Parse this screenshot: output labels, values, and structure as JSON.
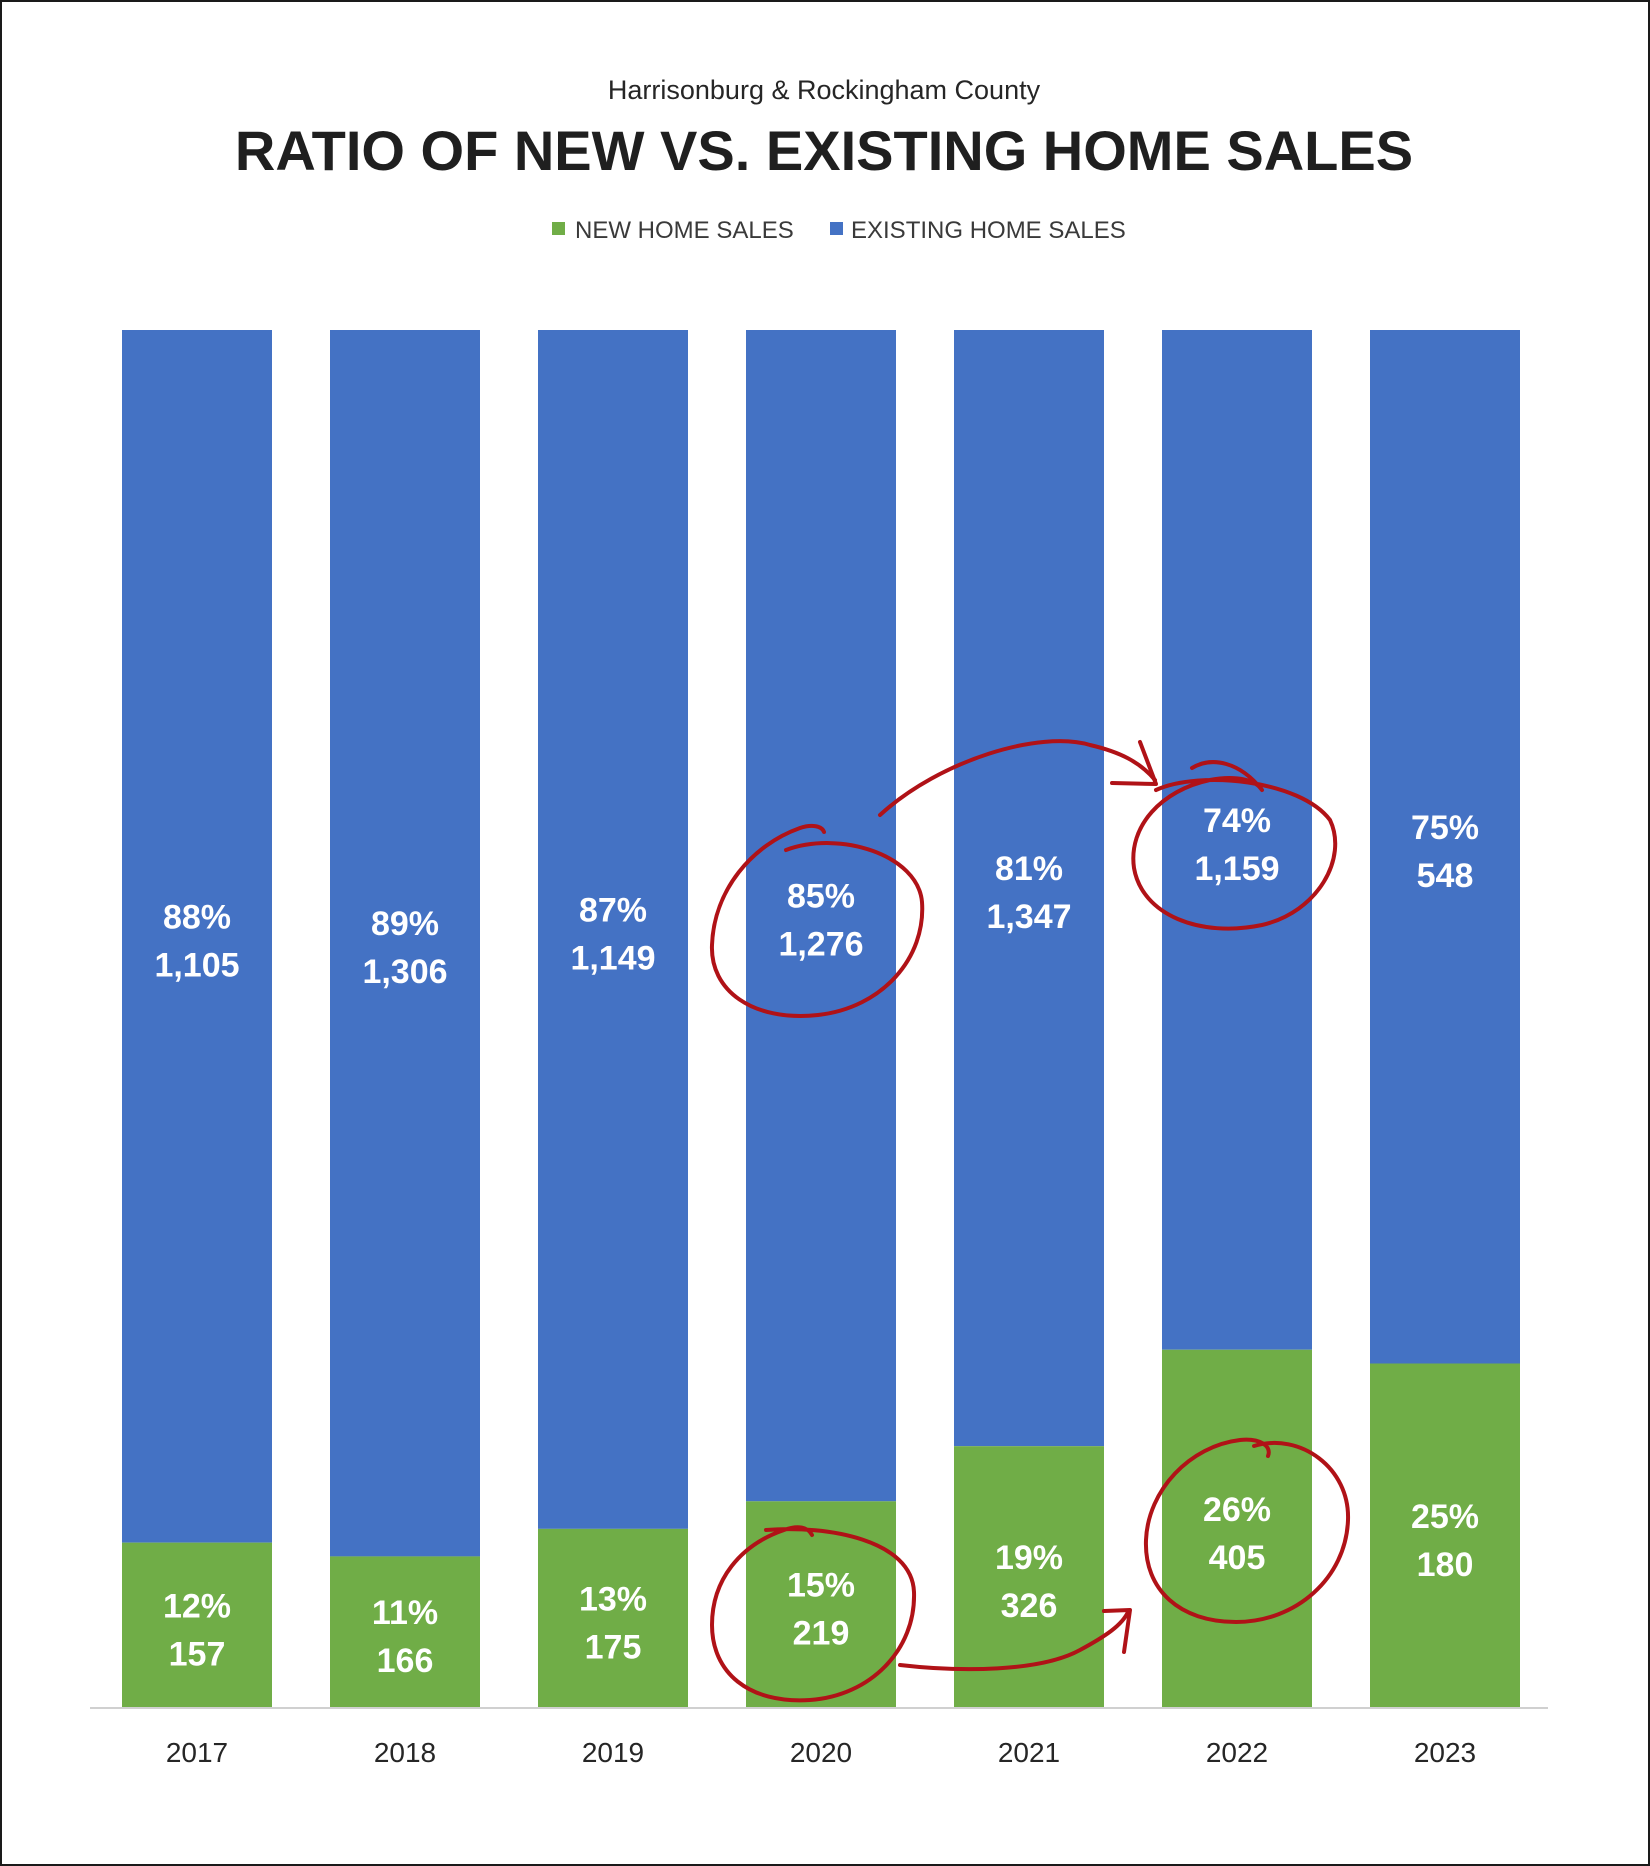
{
  "chart_data": {
    "type": "bar",
    "stacked": true,
    "normalized": true,
    "subtitle": "Harrisonburg & Rockingham County",
    "title": "RATIO OF NEW VS. EXISTING HOME SALES",
    "categories": [
      "2017",
      "2018",
      "2019",
      "2020",
      "2021",
      "2022",
      "2023"
    ],
    "series": [
      {
        "name": "NEW HOME SALES",
        "color": "#70ad47",
        "percent": [
          12,
          11,
          13,
          15,
          19,
          26,
          25
        ],
        "percent_labels": [
          "12%",
          "11%",
          "13%",
          "15%",
          "19%",
          "26%",
          "25%"
        ],
        "count_labels": [
          "157",
          "166",
          "175",
          "219",
          "326",
          "405",
          "180"
        ]
      },
      {
        "name": "EXISTING HOME SALES",
        "color": "#4472c4",
        "percent": [
          88,
          89,
          87,
          85,
          81,
          74,
          75
        ],
        "percent_labels": [
          "88%",
          "89%",
          "87%",
          "85%",
          "81%",
          "74%",
          "75%"
        ],
        "count_labels": [
          "1,105",
          "1,306",
          "1,149",
          "1,276",
          "1,347",
          "1,159",
          "548"
        ]
      }
    ],
    "ylim": [
      0,
      100
    ],
    "grid": false,
    "legend_position": "top",
    "annotation_color": "#b01217",
    "annotations": "hand-drawn circles around 2020 and 2022 labels with arrows from 2020 to 2022"
  }
}
